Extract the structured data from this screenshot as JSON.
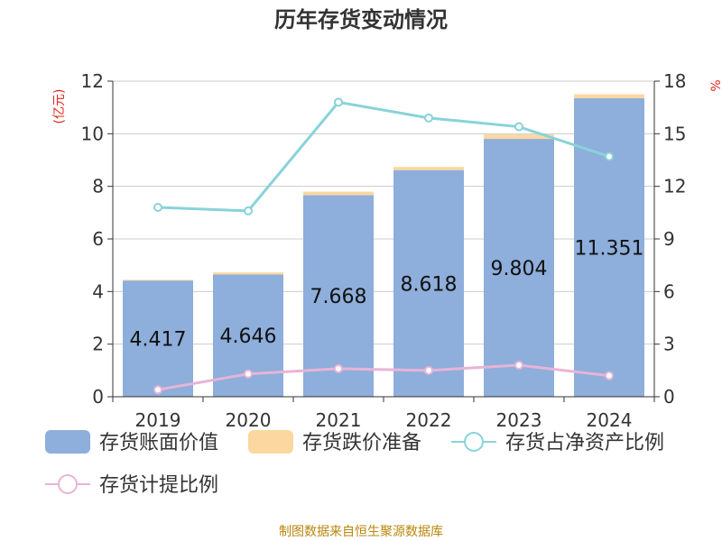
{
  "chart_data": {
    "type": "bar",
    "title": "历年存货变动情况",
    "categories": [
      "2019",
      "2020",
      "2021",
      "2022",
      "2023",
      "2024"
    ],
    "y_left": {
      "unit_label": "(亿元)",
      "ylim": [
        0,
        12
      ],
      "ticks": [
        0,
        2,
        4,
        6,
        8,
        10,
        12
      ]
    },
    "y_right": {
      "unit_label": "%",
      "ylim": [
        0,
        18
      ],
      "ticks": [
        0,
        3,
        6,
        9,
        12,
        15,
        18
      ]
    },
    "grid": true,
    "legend_position": "bottom",
    "series": [
      {
        "name": "存货账面价值",
        "type": "bar",
        "stack": "inventory",
        "axis": "left",
        "color": "#8eaedb",
        "values": [
          4.417,
          4.646,
          7.668,
          8.618,
          9.804,
          11.351
        ],
        "labels": [
          "4.417",
          "4.646",
          "7.668",
          "8.618",
          "9.804",
          "11.351"
        ]
      },
      {
        "name": "存货跌价准备",
        "type": "bar",
        "stack": "inventory",
        "axis": "left",
        "color": "#fcd79f",
        "values": [
          0.03,
          0.08,
          0.13,
          0.12,
          0.17,
          0.15
        ]
      },
      {
        "name": "存货占净资产比例",
        "type": "line",
        "axis": "right",
        "color": "#88d3d9",
        "values": [
          10.8,
          10.6,
          16.8,
          15.9,
          15.4,
          13.7
        ]
      },
      {
        "name": "存货计提比例",
        "type": "line",
        "axis": "right",
        "color": "#e8b4d6",
        "values": [
          0.4,
          1.3,
          1.6,
          1.5,
          1.8,
          1.2
        ]
      }
    ]
  },
  "footer": {
    "source": "制图数据来自恒生聚源数据库"
  }
}
